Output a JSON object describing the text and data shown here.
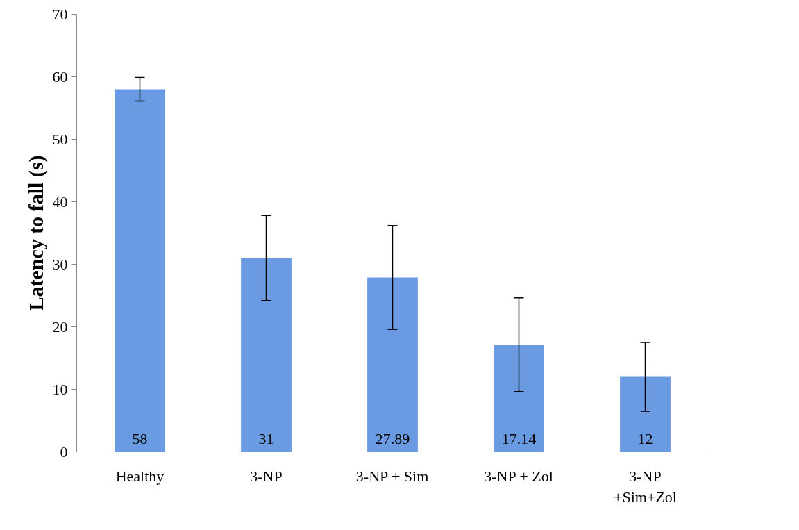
{
  "chart_data": {
    "type": "bar",
    "ylabel": "Latency to fall (s)",
    "categories": [
      "Healthy",
      "3-NP",
      "3-NP + Sim",
      "3-NP + Zol",
      "3-NP\n+Sim+Zol"
    ],
    "values": [
      58,
      31,
      27.89,
      17.14,
      12
    ],
    "errors": [
      1.9,
      6.8,
      8.3,
      7.5,
      5.5
    ],
    "color": "#6a9be2",
    "ylim": [
      0,
      70
    ],
    "yticks": [
      0,
      10,
      20,
      30,
      40,
      50,
      60,
      70
    ],
    "grid": false,
    "data_labels": true
  }
}
